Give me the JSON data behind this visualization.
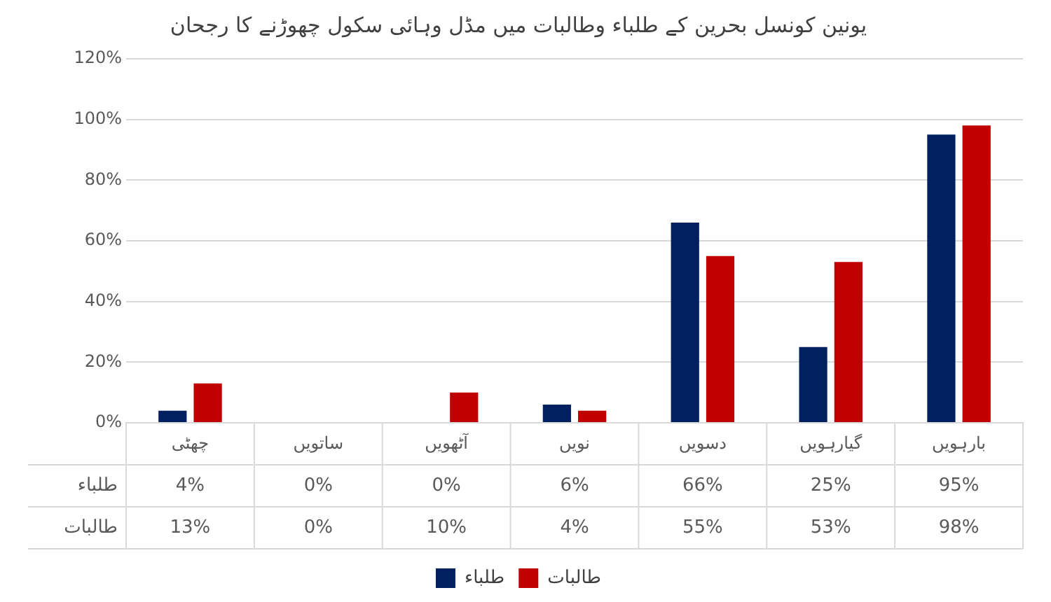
{
  "chart_data": {
    "type": "bar",
    "title": "یونین کونسل بحرین کے طلباء وطالبات میں مڈل وہائی سکول چھوڑنے کا رجحان",
    "categories": [
      "چھٹی",
      "ساتویں",
      "آٹھویں",
      "نویں",
      "دسویں",
      "گیارہویں",
      "بارہویں"
    ],
    "series": [
      {
        "name": "طلباء",
        "color": "#002060",
        "values": [
          4,
          0,
          0,
          6,
          66,
          25,
          95
        ],
        "value_labels": [
          "4%",
          "0%",
          "0%",
          "6%",
          "66%",
          "25%",
          "95%"
        ]
      },
      {
        "name": "طالبات",
        "color": "#c00000",
        "values": [
          13,
          0,
          10,
          4,
          55,
          53,
          98
        ],
        "value_labels": [
          "13%",
          "0%",
          "10%",
          "4%",
          "55%",
          "53%",
          "98%"
        ]
      }
    ],
    "ylim": [
      0,
      120
    ],
    "yticks": [
      {
        "value": 0,
        "label": "0%"
      },
      {
        "value": 20,
        "label": "20%"
      },
      {
        "value": 40,
        "label": "40%"
      },
      {
        "value": 60,
        "label": "60%"
      },
      {
        "value": 80,
        "label": "80%"
      },
      {
        "value": 100,
        "label": "100%"
      },
      {
        "value": 120,
        "label": "120%"
      }
    ],
    "grid": "y",
    "legend": "bottom"
  }
}
